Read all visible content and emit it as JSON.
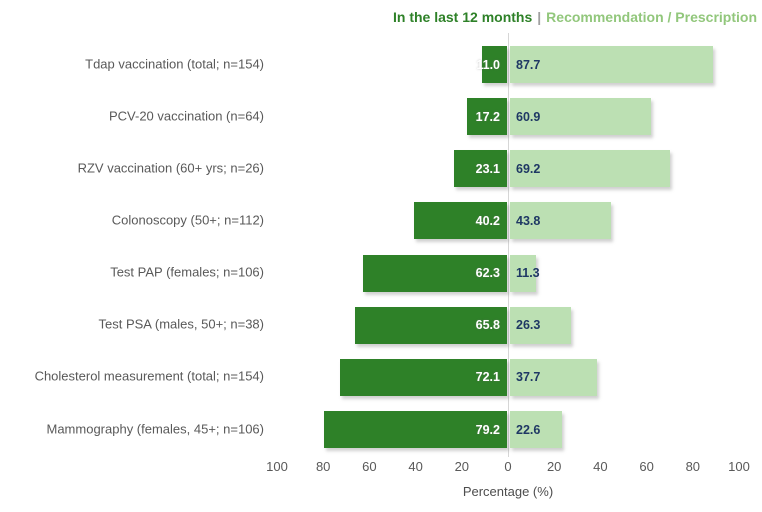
{
  "legend": {
    "left_label": "In the last 12 months",
    "separator": "|",
    "right_label": "Recommendation / Prescription"
  },
  "chart_data": {
    "type": "bar",
    "subtype": "diverging-horizontal-tornado",
    "categories": [
      "Tdap vaccination (total; n=154)",
      "PCV-20 vaccination (n=64)",
      "RZV vaccination (60+ yrs; n=26)",
      "Colonoscopy (50+; n=112)",
      "Test PAP (females; n=106)",
      "Test PSA (males, 50+; n=38)",
      "Cholesterol measurement (total; n=154)",
      "Mammography (females, 45+; n=106)"
    ],
    "series": [
      {
        "name": "In the last 12 months",
        "direction": "left",
        "color": "#2E8128",
        "label_color": "#FFFFFF",
        "values": [
          11.0,
          17.2,
          23.1,
          40.2,
          62.3,
          65.8,
          72.1,
          79.2
        ]
      },
      {
        "name": "Recommendation / Prescription",
        "direction": "right",
        "color": "#BCE0B3",
        "label_color": "#1F3864",
        "values": [
          87.7,
          60.9,
          69.2,
          43.8,
          11.3,
          26.3,
          37.7,
          22.6
        ]
      }
    ],
    "xlabel": "Percentage (%)",
    "x_ticks": [
      100,
      80,
      60,
      40,
      20,
      0,
      20,
      40,
      60,
      80,
      100
    ],
    "xlim": [
      -100,
      100
    ],
    "grid": false,
    "value_label_decimals": 1,
    "legend_position": "top-right"
  },
  "colors": {
    "background": "#FFFFFF",
    "zero_line": "#D6D6D6",
    "category_text": "#595959",
    "tick_text": "#595959",
    "legend_left": "#2E8128",
    "legend_right": "#92C77C",
    "legend_separator": "#A0A0A0"
  }
}
